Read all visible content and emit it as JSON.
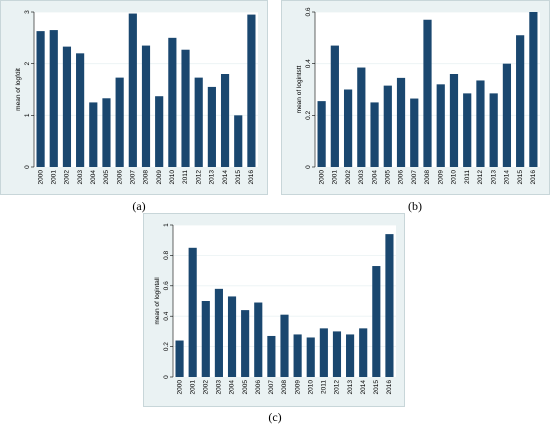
{
  "colors": {
    "bar": "#1a476f",
    "plot_bg": "#ffffff",
    "outer_bg": "#eaf2f3",
    "frame": "#c8d6d9"
  },
  "chart_data": [
    {
      "type": "bar",
      "caption": "(a)",
      "ylabel": "mean of logfdit",
      "categories": [
        "2000",
        "2001",
        "2002",
        "2003",
        "2004",
        "2005",
        "2006",
        "2007",
        "2008",
        "2009",
        "2010",
        "2011",
        "2012",
        "2013",
        "2014",
        "2015",
        "2016"
      ],
      "values": [
        2.63,
        2.65,
        2.33,
        2.2,
        1.25,
        1.33,
        1.73,
        2.97,
        2.35,
        1.37,
        2.5,
        2.27,
        1.73,
        1.55,
        1.8,
        1.0,
        2.95
      ],
      "ylim": [
        0,
        3
      ],
      "yticks": [
        {
          "v": 0,
          "label": "0"
        },
        {
          "v": 1,
          "label": "1"
        },
        {
          "v": 2,
          "label": "2"
        },
        {
          "v": 3,
          "label": "3"
        }
      ],
      "grid": true
    },
    {
      "type": "bar",
      "caption": "(b)",
      "ylabel": "mean of logintstt",
      "categories": [
        "2000",
        "2001",
        "2002",
        "2003",
        "2004",
        "2005",
        "2006",
        "2007",
        "2008",
        "2009",
        "2010",
        "2011",
        "2012",
        "2013",
        "2014",
        "2015",
        "2016"
      ],
      "values": [
        0.255,
        0.47,
        0.3,
        0.385,
        0.25,
        0.315,
        0.345,
        0.265,
        0.57,
        0.32,
        0.36,
        0.285,
        0.335,
        0.285,
        0.4,
        0.51,
        0.6
      ],
      "ylim": [
        0,
        0.6
      ],
      "yticks": [
        {
          "v": 0,
          "label": "0"
        },
        {
          "v": 0.2,
          "label": "0.2"
        },
        {
          "v": 0.4,
          "label": "0.4"
        },
        {
          "v": 0.6,
          "label": "0.6"
        }
      ],
      "grid": true
    },
    {
      "type": "bar",
      "caption": "(c)",
      "ylabel": "mean of logintall",
      "categories": [
        "2000",
        "2001",
        "2002",
        "2003",
        "2004",
        "2005",
        "2006",
        "2007",
        "2008",
        "2009",
        "2010",
        "2011",
        "2012",
        "2013",
        "2014",
        "2015",
        "2016"
      ],
      "values": [
        0.24,
        0.85,
        0.5,
        0.58,
        0.53,
        0.44,
        0.49,
        0.27,
        0.41,
        0.28,
        0.26,
        0.32,
        0.3,
        0.28,
        0.32,
        0.73,
        0.94
      ],
      "ylim": [
        0,
        1
      ],
      "yticks": [
        {
          "v": 0,
          "label": "0"
        },
        {
          "v": 0.2,
          "label": "0.2"
        },
        {
          "v": 0.4,
          "label": "0.4"
        },
        {
          "v": 0.6,
          "label": "0.6"
        },
        {
          "v": 0.8,
          "label": "0.8"
        },
        {
          "v": 1,
          "label": "1"
        }
      ],
      "grid": true
    }
  ]
}
